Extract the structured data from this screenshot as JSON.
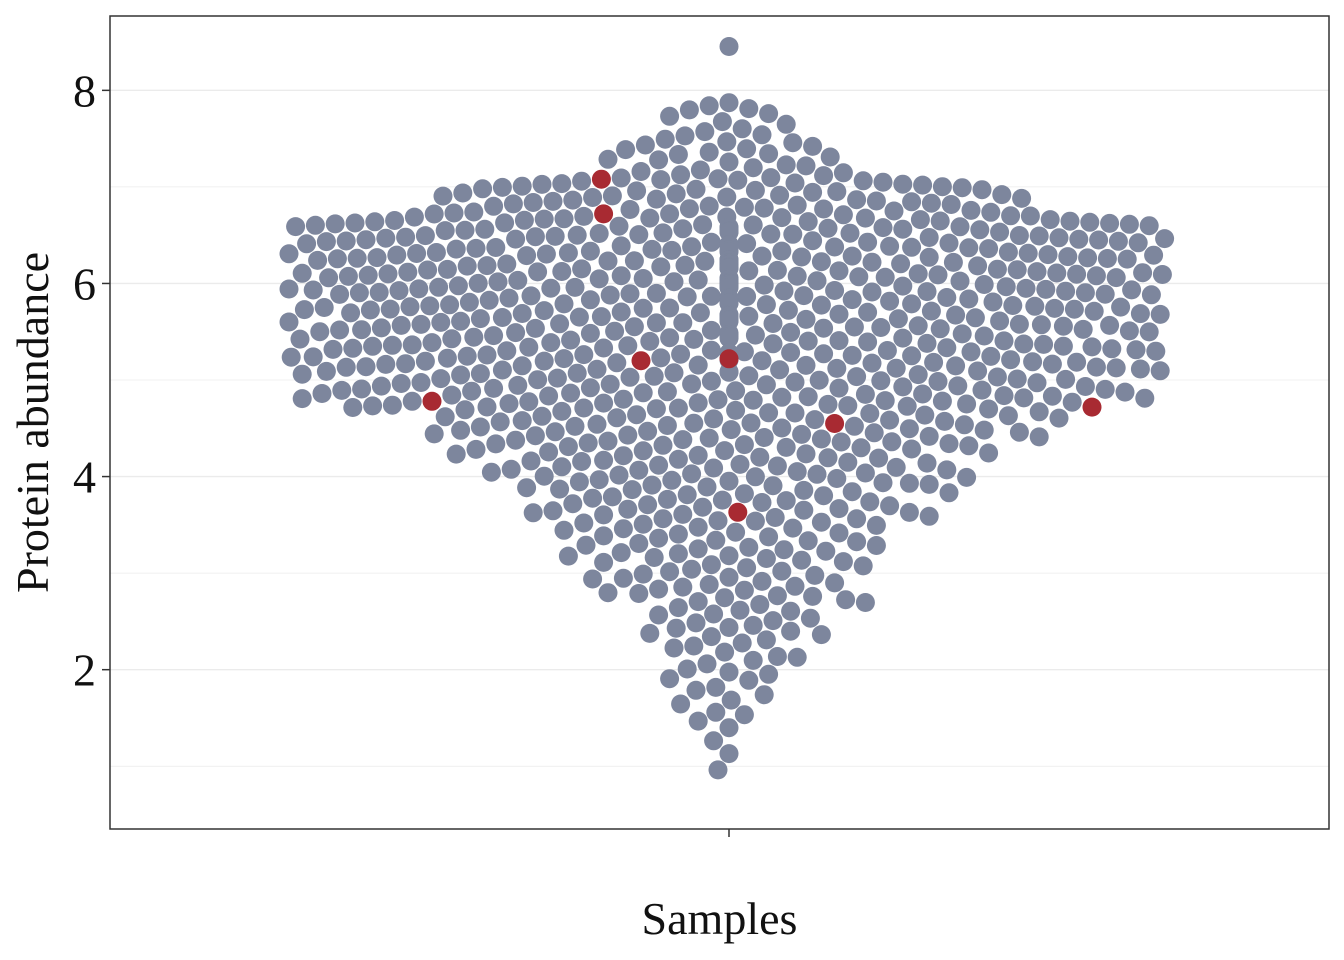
{
  "chart_data": {
    "type": "scatter",
    "subtype": "beeswarm",
    "title": "",
    "xlabel": "Samples",
    "ylabel": "Protein abundance",
    "ylim": [
      0.35,
      8.77
    ],
    "yticks": [
      2,
      4,
      6,
      8
    ],
    "grid": true,
    "legend": "none",
    "colors": {
      "default": "#7d869d",
      "highlight": "#a82a32",
      "panel_border": "#333333",
      "grid": "#ebebeb"
    },
    "highlighted_values": [
      7.08,
      6.72,
      5.2,
      5.22,
      4.78,
      4.72,
      4.55,
      3.63
    ],
    "distribution": [
      {
        "min": 0.7,
        "max": 1.1,
        "count": 1
      },
      {
        "min": 1.1,
        "max": 1.5,
        "count": 4
      },
      {
        "min": 1.5,
        "max": 1.9,
        "count": 8
      },
      {
        "min": 1.9,
        "max": 2.3,
        "count": 12
      },
      {
        "min": 2.3,
        "max": 2.7,
        "count": 18
      },
      {
        "min": 2.7,
        "max": 3.1,
        "count": 25
      },
      {
        "min": 3.1,
        "max": 3.5,
        "count": 30
      },
      {
        "min": 3.5,
        "max": 3.9,
        "count": 38
      },
      {
        "min": 3.9,
        "max": 4.3,
        "count": 48
      },
      {
        "min": 4.3,
        "max": 4.7,
        "count": 60
      },
      {
        "min": 4.7,
        "max": 5.1,
        "count": 84
      },
      {
        "min": 5.1,
        "max": 5.5,
        "count": 96
      },
      {
        "min": 5.5,
        "max": 5.9,
        "count": 104
      },
      {
        "min": 5.9,
        "max": 6.3,
        "count": 120
      },
      {
        "min": 6.3,
        "max": 6.7,
        "count": 104
      },
      {
        "min": 6.7,
        "max": 7.1,
        "count": 60
      },
      {
        "min": 7.1,
        "max": 7.5,
        "count": 22
      },
      {
        "min": 7.5,
        "max": 7.9,
        "count": 12
      },
      {
        "min": 8.3,
        "max": 8.5,
        "count": 1
      }
    ]
  }
}
